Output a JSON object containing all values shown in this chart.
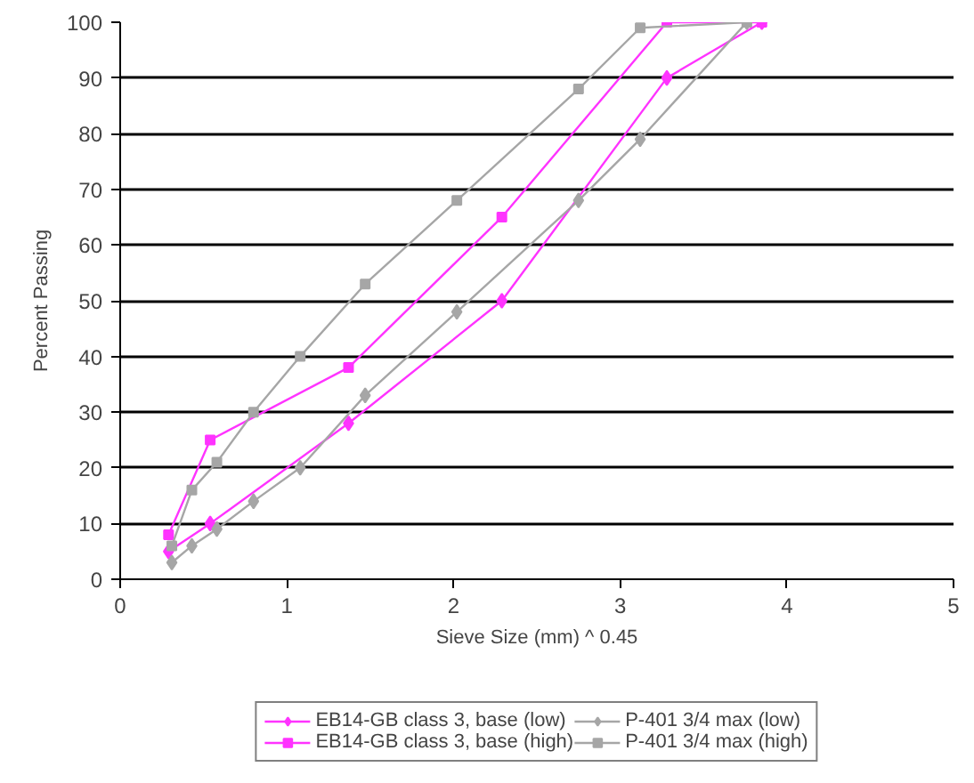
{
  "chart_data": {
    "type": "line",
    "xlabel": "Sieve Size (mm) ^ 0.45",
    "ylabel": "Percent Passing",
    "xlim": [
      0,
      5
    ],
    "ylim": [
      0,
      100
    ],
    "xticks": [
      0,
      1,
      2,
      3,
      4,
      5
    ],
    "yticks": [
      0,
      10,
      20,
      30,
      40,
      50,
      60,
      70,
      80,
      90,
      100
    ],
    "grid": "y",
    "legend": "bottom",
    "line_style": "solid",
    "series": [
      {
        "name": "EB14-GB class 3, base (low)",
        "color": "#ff33ff",
        "marker": "diamond",
        "x": [
          0.29,
          0.54,
          1.37,
          2.29,
          3.28,
          3.85
        ],
        "values": [
          5,
          10,
          28,
          50,
          90,
          100
        ]
      },
      {
        "name": "EB14-GB class 3, base (high)",
        "color": "#ff33ff",
        "marker": "square",
        "x": [
          0.29,
          0.54,
          1.37,
          2.29,
          3.28,
          3.85
        ],
        "values": [
          8,
          25,
          38,
          65,
          100,
          100
        ]
      },
      {
        "name": "P-401 3/4 max (low)",
        "color": "#a6a6a6",
        "marker": "diamond",
        "x": [
          0.31,
          0.43,
          0.58,
          0.8,
          1.08,
          1.47,
          2.02,
          2.75,
          3.12,
          3.76
        ],
        "values": [
          3,
          6,
          9,
          14,
          20,
          33,
          48,
          68,
          79,
          100
        ]
      },
      {
        "name": "P-401 3/4 max (high)",
        "color": "#a6a6a6",
        "marker": "square",
        "x": [
          0.31,
          0.43,
          0.58,
          0.8,
          1.08,
          1.47,
          2.02,
          2.75,
          3.12,
          3.76
        ],
        "values": [
          6,
          16,
          21,
          30,
          40,
          53,
          68,
          88,
          99,
          100
        ]
      }
    ]
  }
}
